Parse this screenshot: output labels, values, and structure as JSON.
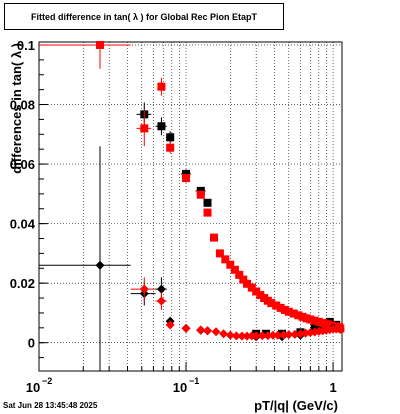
{
  "title": "Fitted difference in tan( λ ) for Global Rec Pion EtapT",
  "timestamp": "Sat Jun 28 13:45:48 2025",
  "colors": {
    "black_series": "#000000",
    "red_series": "#ff0000",
    "grid": "#000000"
  },
  "chart_data": {
    "type": "scatter",
    "title": "Fitted difference in tan( λ ) for Global Rec Pion EtapT",
    "xlabel": "pT/|q| (GeV/c)",
    "ylabel": "differences in tan( λ )",
    "x_scale": "log",
    "xlim": [
      0.01,
      1.15
    ],
    "ylim": [
      -0.0095,
      0.101
    ],
    "grid": true,
    "x_ticks": [
      {
        "value": 0.01,
        "label": "10",
        "exp": "−2"
      },
      {
        "value": 0.1,
        "label": "10",
        "exp": "−1"
      },
      {
        "value": 1,
        "label": "1",
        "exp": ""
      }
    ],
    "y_ticks": [
      {
        "value": 0,
        "label": "0"
      },
      {
        "value": 0.02,
        "label": "0.02"
      },
      {
        "value": 0.04,
        "label": "0.04"
      },
      {
        "value": 0.06,
        "label": "0.06"
      },
      {
        "value": 0.08,
        "label": "0.08"
      },
      {
        "value": 0.1,
        "label": "0.1"
      }
    ],
    "series": [
      {
        "color": "#000000",
        "marker": "square",
        "points": [
          {
            "x": 0.052,
            "y": 0.0767,
            "xerr": 0.006,
            "yerr": 0.004
          },
          {
            "x": 0.068,
            "y": 0.0727,
            "xerr": 0.006,
            "yerr": 0.003
          },
          {
            "x": 0.078,
            "y": 0.069,
            "xerr": 0.005,
            "yerr": 0.002
          },
          {
            "x": 0.1,
            "y": 0.0567,
            "xerr": 0.008,
            "yerr": 0.0015
          },
          {
            "x": 0.126,
            "y": 0.051,
            "xerr": 0.01,
            "yerr": 0.0012
          },
          {
            "x": 0.14,
            "y": 0.047,
            "xerr": 0.008,
            "yerr": 0.001
          },
          {
            "x": 0.3,
            "y": 0.003
          },
          {
            "x": 0.35,
            "y": 0.003
          },
          {
            "x": 0.45,
            "y": 0.003
          },
          {
            "x": 0.6,
            "y": 0.0035
          },
          {
            "x": 0.75,
            "y": 0.005
          },
          {
            "x": 0.85,
            "y": 0.006
          },
          {
            "x": 0.95,
            "y": 0.007
          },
          {
            "x": 1.05,
            "y": 0.006
          }
        ]
      },
      {
        "color": "#ff0000",
        "marker": "square",
        "points": [
          {
            "x": 0.026,
            "y": 0.1,
            "xerr": 0.016,
            "yerr": 0.008
          },
          {
            "x": 0.052,
            "y": 0.072,
            "xerr": 0.006,
            "yerr": 0.006
          },
          {
            "x": 0.068,
            "y": 0.086,
            "xerr": 0.004,
            "yerr": 0.003
          },
          {
            "x": 0.078,
            "y": 0.0655,
            "xerr": 0.004,
            "yerr": 0.002
          },
          {
            "x": 0.1,
            "y": 0.0553,
            "xerr": 0.006,
            "yerr": 0.0015
          },
          {
            "x": 0.126,
            "y": 0.0497,
            "xerr": 0.008,
            "yerr": 0.001
          },
          {
            "x": 0.14,
            "y": 0.0437,
            "xerr": 0.006,
            "yerr": 0.001
          },
          {
            "x": 0.155,
            "y": 0.0353
          },
          {
            "x": 0.17,
            "y": 0.03
          },
          {
            "x": 0.185,
            "y": 0.028
          },
          {
            "x": 0.2,
            "y": 0.0262
          },
          {
            "x": 0.215,
            "y": 0.0245
          },
          {
            "x": 0.23,
            "y": 0.0228
          },
          {
            "x": 0.245,
            "y": 0.0212
          },
          {
            "x": 0.26,
            "y": 0.0198
          },
          {
            "x": 0.28,
            "y": 0.0185
          },
          {
            "x": 0.3,
            "y": 0.0172
          },
          {
            "x": 0.32,
            "y": 0.016
          },
          {
            "x": 0.34,
            "y": 0.015
          },
          {
            "x": 0.36,
            "y": 0.0141
          },
          {
            "x": 0.38,
            "y": 0.0133
          },
          {
            "x": 0.41,
            "y": 0.0125
          },
          {
            "x": 0.44,
            "y": 0.0117
          },
          {
            "x": 0.47,
            "y": 0.011
          },
          {
            "x": 0.5,
            "y": 0.0104
          },
          {
            "x": 0.54,
            "y": 0.0098
          },
          {
            "x": 0.58,
            "y": 0.0092
          },
          {
            "x": 0.62,
            "y": 0.0087
          },
          {
            "x": 0.66,
            "y": 0.0082
          },
          {
            "x": 0.7,
            "y": 0.0078
          },
          {
            "x": 0.75,
            "y": 0.0074
          },
          {
            "x": 0.8,
            "y": 0.007
          },
          {
            "x": 0.86,
            "y": 0.0066
          },
          {
            "x": 0.92,
            "y": 0.0062
          },
          {
            "x": 0.98,
            "y": 0.0058
          },
          {
            "x": 1.04,
            "y": 0.0055
          },
          {
            "x": 1.1,
            "y": 0.0052
          },
          {
            "x": 1.12,
            "y": 0.0048
          }
        ]
      },
      {
        "color": "#000000",
        "marker": "diamond",
        "points": [
          {
            "x": 0.026,
            "y": 0.026,
            "xerr": 0.016,
            "yerr": 0.04
          },
          {
            "x": 0.052,
            "y": 0.0165,
            "xerr": 0.01,
            "yerr": 0.004
          },
          {
            "x": 0.068,
            "y": 0.018,
            "xerr": 0.006,
            "yerr": 0.004
          },
          {
            "x": 0.078,
            "y": 0.0072,
            "xerr": 0.004,
            "yerr": 0.0015
          },
          {
            "x": 0.1,
            "y": 0.0048,
            "xerr": 0.006,
            "yerr": 0.001
          },
          {
            "x": 0.126,
            "y": 0.0042
          },
          {
            "x": 0.14,
            "y": 0.004
          },
          {
            "x": 0.3,
            "y": 0.002
          },
          {
            "x": 0.45,
            "y": 0.002
          },
          {
            "x": 0.6,
            "y": 0.0025
          },
          {
            "x": 0.8,
            "y": 0.004
          },
          {
            "x": 1.0,
            "y": 0.005
          }
        ]
      },
      {
        "color": "#ff0000",
        "marker": "diamond",
        "points": [
          {
            "x": 0.052,
            "y": 0.018,
            "xerr": 0.01,
            "yerr": 0.004
          },
          {
            "x": 0.068,
            "y": 0.014,
            "xerr": 0.006,
            "yerr": 0.003
          },
          {
            "x": 0.078,
            "y": 0.006,
            "xerr": 0.004,
            "yerr": 0.0015
          },
          {
            "x": 0.1,
            "y": 0.0048
          },
          {
            "x": 0.126,
            "y": 0.0043
          },
          {
            "x": 0.14,
            "y": 0.004
          },
          {
            "x": 0.16,
            "y": 0.0037
          },
          {
            "x": 0.18,
            "y": 0.003
          },
          {
            "x": 0.2,
            "y": 0.0025
          },
          {
            "x": 0.22,
            "y": 0.0023
          },
          {
            "x": 0.24,
            "y": 0.0022
          },
          {
            "x": 0.26,
            "y": 0.0022
          },
          {
            "x": 0.28,
            "y": 0.0023
          },
          {
            "x": 0.3,
            "y": 0.0023
          },
          {
            "x": 0.33,
            "y": 0.0024
          },
          {
            "x": 0.36,
            "y": 0.0024
          },
          {
            "x": 0.39,
            "y": 0.0025
          },
          {
            "x": 0.42,
            "y": 0.0025
          },
          {
            "x": 0.46,
            "y": 0.0026
          },
          {
            "x": 0.5,
            "y": 0.0027
          },
          {
            "x": 0.55,
            "y": 0.0028
          },
          {
            "x": 0.6,
            "y": 0.003
          },
          {
            "x": 0.65,
            "y": 0.0032
          },
          {
            "x": 0.7,
            "y": 0.0034
          },
          {
            "x": 0.75,
            "y": 0.0036
          },
          {
            "x": 0.8,
            "y": 0.0038
          },
          {
            "x": 0.85,
            "y": 0.004
          },
          {
            "x": 0.9,
            "y": 0.0042
          },
          {
            "x": 0.95,
            "y": 0.0044
          },
          {
            "x": 1.0,
            "y": 0.0046
          },
          {
            "x": 1.05,
            "y": 0.0046
          },
          {
            "x": 1.1,
            "y": 0.0047
          },
          {
            "x": 1.12,
            "y": 0.0045
          }
        ]
      }
    ]
  }
}
